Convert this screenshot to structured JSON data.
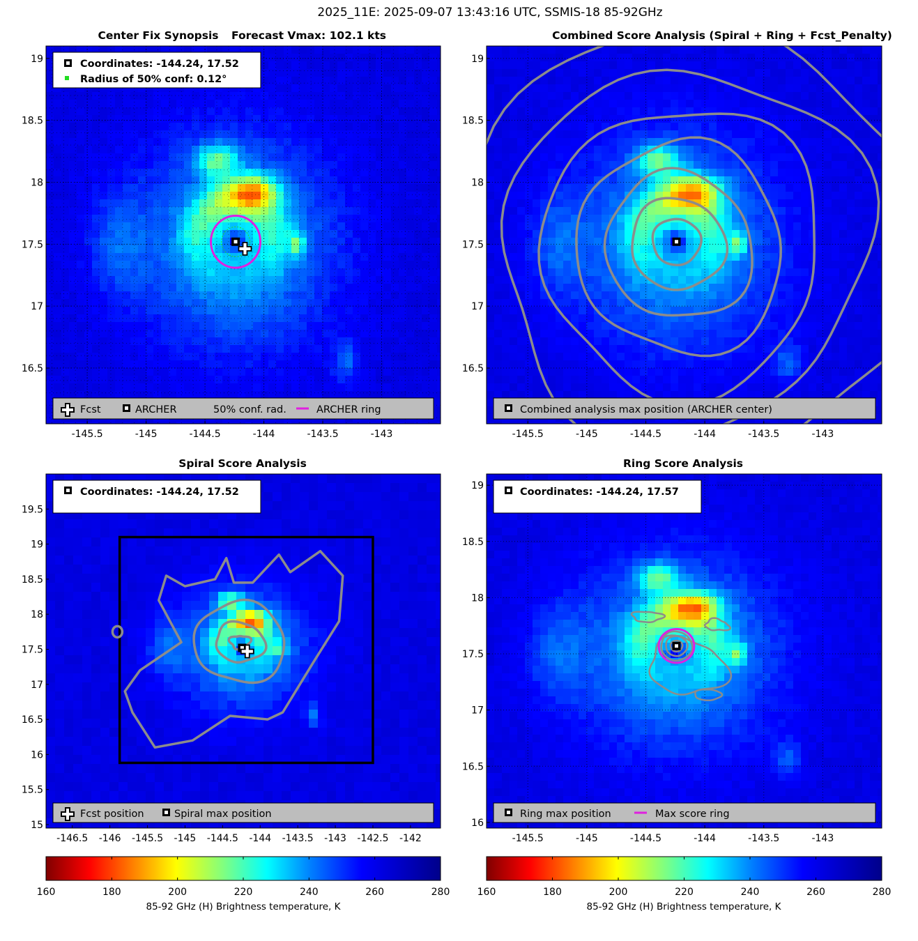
{
  "figure": {
    "suptitle": "2025_11E: 2025-09-07 13:43:16 UTC, SSMIS-18 85-92GHz"
  },
  "colors": {
    "archer_ring": "#e020e0",
    "contour": "#8c8c8c",
    "legend_bg": "#bdbdbd",
    "conf_dot": "#22dd22",
    "box": "#000000"
  },
  "panels": {
    "synopsis": {
      "title_left": "Center Fix Synopsis",
      "title_right": "Forecast Vmax: 102.1 kts",
      "info": {
        "line1": "Coordinates: -144.24, 17.52",
        "line2": "Radius of 50% conf: 0.12°"
      },
      "legend": {
        "fcst": "Fcst",
        "archer": "ARCHER",
        "conf": "50% conf. rad.",
        "ring": "ARCHER ring"
      }
    },
    "combined": {
      "title": "Combined Score Analysis (Spiral + Ring + Fcst_Penalty)",
      "legend": {
        "max": "Combined analysis max position (ARCHER center)"
      }
    },
    "spiral": {
      "title": "Spiral Score Analysis",
      "info": {
        "line1": "Coordinates: -144.24, 17.52"
      },
      "legend": {
        "fcst": "Fcst position",
        "max": "Spiral max position"
      }
    },
    "ring": {
      "title": "Ring Score Analysis",
      "info": {
        "line1": "Coordinates: -144.24, 17.57"
      },
      "legend": {
        "max": "Ring max position",
        "ring": "Max score ring"
      }
    }
  },
  "colorbar": {
    "label": "85-92 GHz (H) Brightness temperature, K",
    "ticks": [
      "160",
      "180",
      "200",
      "220",
      "240",
      "260",
      "280"
    ],
    "range": [
      160,
      280
    ]
  },
  "chart_data": [
    {
      "type": "heatmap",
      "name": "synopsis",
      "title": "Center Fix Synopsis     Forecast Vmax: 102.1 kts",
      "xlim": [
        -145.85,
        -142.5
      ],
      "ylim": [
        16.05,
        19.1
      ],
      "xticks": [
        -145.5,
        -145,
        -144.5,
        -144,
        -143.5,
        -143
      ],
      "yticks": [
        16,
        16.5,
        17,
        17.5,
        18,
        18.5,
        19
      ],
      "xtick_labels": [
        "-145.5",
        "-145",
        "-144.5",
        "-144",
        "-143.5",
        "-143"
      ],
      "ytick_labels": [
        "16",
        "16.5",
        "17",
        "17.5",
        "18",
        "18.5",
        "19"
      ],
      "archer_center": [
        -144.24,
        17.52
      ],
      "fcst_position": [
        -144.19,
        17.48
      ],
      "conf_radius_deg": 0.12,
      "archer_ring_radius_deg": 0.21,
      "grid": true
    },
    {
      "type": "heatmap",
      "name": "combined",
      "title": "Combined Score Analysis (Spiral + Ring + Fcst_Penalty)",
      "xlim": [
        -145.85,
        -142.5
      ],
      "ylim": [
        16.05,
        19.1
      ],
      "xticks": [
        -145.5,
        -145,
        -144.5,
        -144,
        -143.5,
        -143
      ],
      "yticks": [
        16,
        16.5,
        17,
        17.5,
        18,
        18.5,
        19
      ],
      "xtick_labels": [
        "-145.5",
        "-145",
        "-144.5",
        "-144",
        "-143.5",
        "-143"
      ],
      "ytick_labels": [
        "16",
        "16.5",
        "17",
        "17.5",
        "18",
        "18.5",
        "19"
      ],
      "max_position": [
        -144.24,
        17.52
      ],
      "contour_radii_deg": [
        0.2,
        0.38,
        0.58,
        0.8,
        1.05,
        1.32,
        1.62
      ],
      "grid": true
    },
    {
      "type": "heatmap",
      "name": "spiral",
      "title": "Spiral Score Analysis",
      "xlim": [
        -146.85,
        -141.6
      ],
      "ylim": [
        14.95,
        20.0
      ],
      "xticks": [
        -146.5,
        -146,
        -145.5,
        -145,
        -144.5,
        -144,
        -143.5,
        -143,
        -142.5,
        -142
      ],
      "yticks": [
        15,
        15.5,
        16,
        16.5,
        17,
        17.5,
        18,
        18.5,
        19,
        19.5
      ],
      "xtick_labels": [
        "-146.5",
        "-146",
        "-145.5",
        "-145",
        "-144.5",
        "-144",
        "-143.5",
        "-143",
        "-142.5",
        "-142"
      ],
      "ytick_labels": [
        "15",
        "15.5",
        "16",
        "16.5",
        "17",
        "17.5",
        "18",
        "18.5",
        "19",
        "19.5"
      ],
      "max_position": [
        -144.24,
        17.52
      ],
      "fcst_position": [
        -144.19,
        17.48
      ],
      "search_box": {
        "x": [
          -145.87,
          -142.5
        ],
        "y": [
          15.88,
          19.1
        ]
      },
      "grid": false
    },
    {
      "type": "heatmap",
      "name": "ring",
      "title": "Ring Score Analysis",
      "xlim": [
        -145.85,
        -142.5
      ],
      "ylim": [
        15.95,
        19.1
      ],
      "xticks": [
        -145.5,
        -145,
        -144.5,
        -144,
        -143.5,
        -143
      ],
      "yticks": [
        16,
        16.5,
        17,
        17.5,
        18,
        18.5,
        19
      ],
      "xtick_labels": [
        "-145.5",
        "-145",
        "-144.5",
        "-144",
        "-143.5",
        "-143"
      ],
      "ytick_labels": [
        "16",
        "16.5",
        "17",
        "17.5",
        "18",
        "18.5",
        "19"
      ],
      "max_position": [
        -144.24,
        17.57
      ],
      "max_score_ring_radius_deg": 0.15,
      "grid": true
    }
  ]
}
